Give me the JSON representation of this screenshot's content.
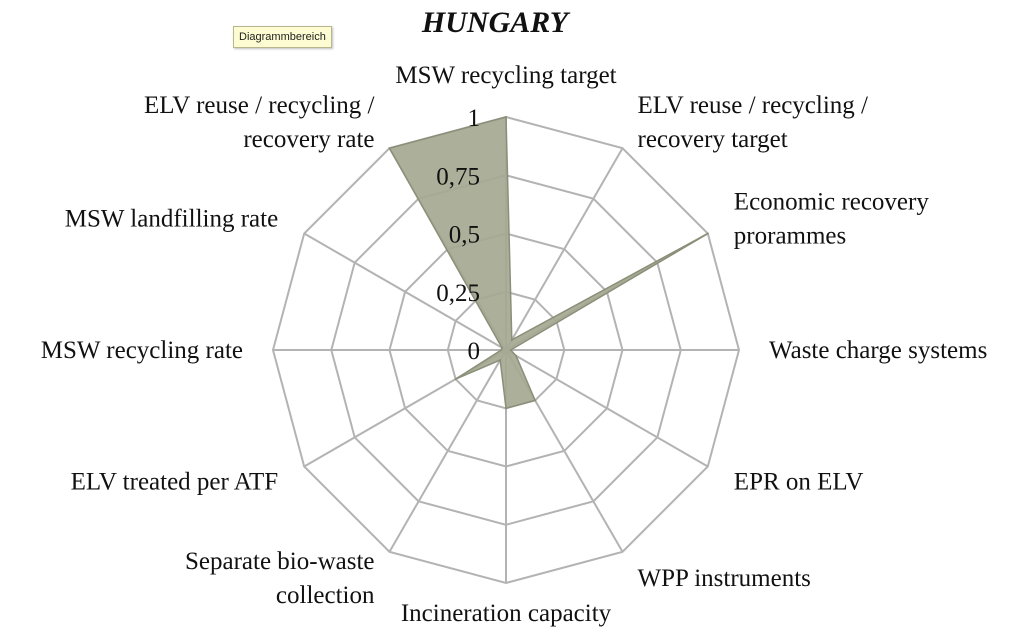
{
  "tooltip": "Diagrammbereich",
  "chart_data": {
    "type": "radar",
    "title": "HUNGARY",
    "axes": [
      "MSW recycling target",
      "ELV reuse / recycling / recovery target",
      "Economic recovery proramme",
      "Waste charge systems",
      "EPR on ELV",
      "WPP instruments",
      "Incineration capacity",
      "Separate bio-waste collection",
      "ELV treated per ATF",
      "MSW recycling rate",
      "MSW landfilling rate",
      "ELV reuse / recycling / recovery rate"
    ],
    "axis_label_lines": [
      [
        "MSW recycling target"
      ],
      [
        "ELV reuse / recycling /",
        "recovery target"
      ],
      [
        "Economic recovery",
        "prorammes"
      ],
      [
        "Waste charge systems"
      ],
      [
        "EPR on ELV"
      ],
      [
        "WPP instruments"
      ],
      [
        "Incineration capacity"
      ],
      [
        "Separate bio-waste",
        "collection"
      ],
      [
        "ELV treated per ATF"
      ],
      [
        "MSW recycling rate"
      ],
      [
        "MSW landfilling rate"
      ],
      [
        "ELV reuse / recycling /",
        "recovery rate"
      ]
    ],
    "ticks": [
      "0",
      "0,25",
      "0,5",
      "0,75",
      "1"
    ],
    "tick_values": [
      0,
      0.25,
      0.5,
      0.75,
      1
    ],
    "rlim": [
      0,
      1
    ],
    "series": [
      {
        "values": [
          1,
          0.05,
          1,
          0.02,
          0.05,
          0.25,
          0.25,
          0.05,
          0.25,
          0.02,
          0.02,
          1
        ]
      }
    ],
    "colors": {
      "fill": "#a5a993",
      "stroke": "#8a8f78",
      "grid": "#b3b3b3"
    }
  }
}
